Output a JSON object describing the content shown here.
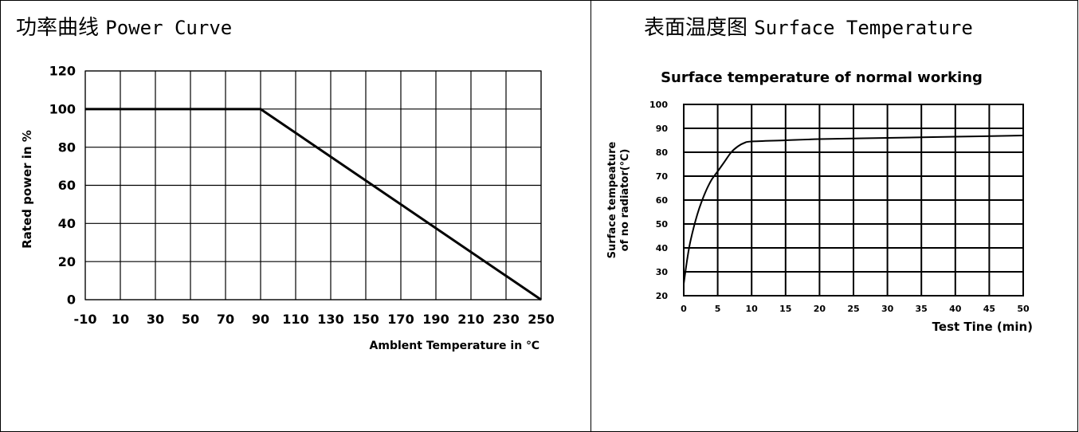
{
  "header_left": {
    "zh": "功率曲线",
    "en": "Power Curve"
  },
  "header_right": {
    "zh": "表面温度图",
    "en": "Surface Temperature"
  },
  "chart_data": [
    {
      "type": "line",
      "title": "",
      "xlabel": "Amblent Temperature in ℃",
      "ylabel": "Rated power in %",
      "x_ticks": [
        "-10",
        "10",
        "30",
        "50",
        "70",
        "90",
        "110",
        "130",
        "150",
        "170",
        "190",
        "210",
        "230",
        "250"
      ],
      "y_ticks": [
        "0",
        "20",
        "40",
        "60",
        "80",
        "100",
        "120"
      ],
      "xlim": [
        -10,
        250
      ],
      "ylim": [
        0,
        120
      ],
      "grid": true,
      "series": [
        {
          "x": [
            -10,
            90,
            250
          ],
          "y": [
            100,
            100,
            0
          ]
        }
      ]
    },
    {
      "type": "line",
      "title": "Surface temperature of normal working",
      "xlabel": "Test Tine (min)",
      "ylabel_lines": [
        "Surface tempeature",
        "of no radiator(℃)"
      ],
      "x_ticks": [
        "0",
        "5",
        "10",
        "15",
        "20",
        "25",
        "30",
        "35",
        "40",
        "45",
        "50"
      ],
      "y_ticks": [
        "20",
        "30",
        "40",
        "50",
        "60",
        "70",
        "80",
        "90",
        "100"
      ],
      "xlim": [
        0,
        50
      ],
      "ylim": [
        20,
        100
      ],
      "grid": true,
      "series": [
        {
          "x": [
            0,
            0.5,
            1,
            2,
            3,
            4,
            5,
            6,
            7,
            8,
            9,
            10,
            15,
            20,
            30,
            40,
            50
          ],
          "y": [
            25,
            35,
            43,
            54,
            62,
            68,
            72,
            76,
            80,
            82.5,
            84,
            84.5,
            85,
            85.5,
            86,
            86.5,
            87
          ]
        }
      ]
    }
  ]
}
